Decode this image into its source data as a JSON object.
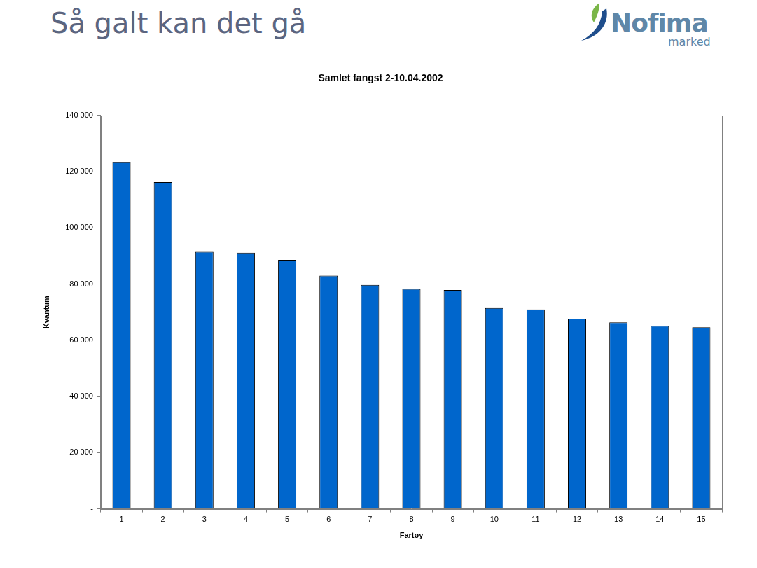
{
  "header": {
    "title": "Så galt kan det gå",
    "logo": {
      "name": "Nofima",
      "sub": "marked"
    }
  },
  "chart_data": {
    "type": "bar",
    "title": "Samlet fangst 2-10.04.2002",
    "x_label": "Fartøy",
    "y_label": "Kvantum",
    "categories": [
      "1",
      "2",
      "3",
      "4",
      "5",
      "6",
      "7",
      "8",
      "9",
      "10",
      "11",
      "12",
      "13",
      "14",
      "15"
    ],
    "values": [
      123300,
      116300,
      91500,
      91200,
      88600,
      83000,
      79700,
      78300,
      77900,
      71500,
      71000,
      67700,
      66400,
      65100,
      64600
    ],
    "color": "#0066cc",
    "ylim": [
      0,
      140000
    ],
    "yticks": [
      {
        "value": 0,
        "label": "-"
      },
      {
        "value": 20000,
        "label": "20 000"
      },
      {
        "value": 40000,
        "label": "40 000"
      },
      {
        "value": 60000,
        "label": "60 000"
      },
      {
        "value": 80000,
        "label": "80 000"
      },
      {
        "value": 100000,
        "label": "100 000"
      },
      {
        "value": 120000,
        "label": "120 000"
      },
      {
        "value": 140000,
        "label": "140 000"
      }
    ],
    "grid": false
  }
}
